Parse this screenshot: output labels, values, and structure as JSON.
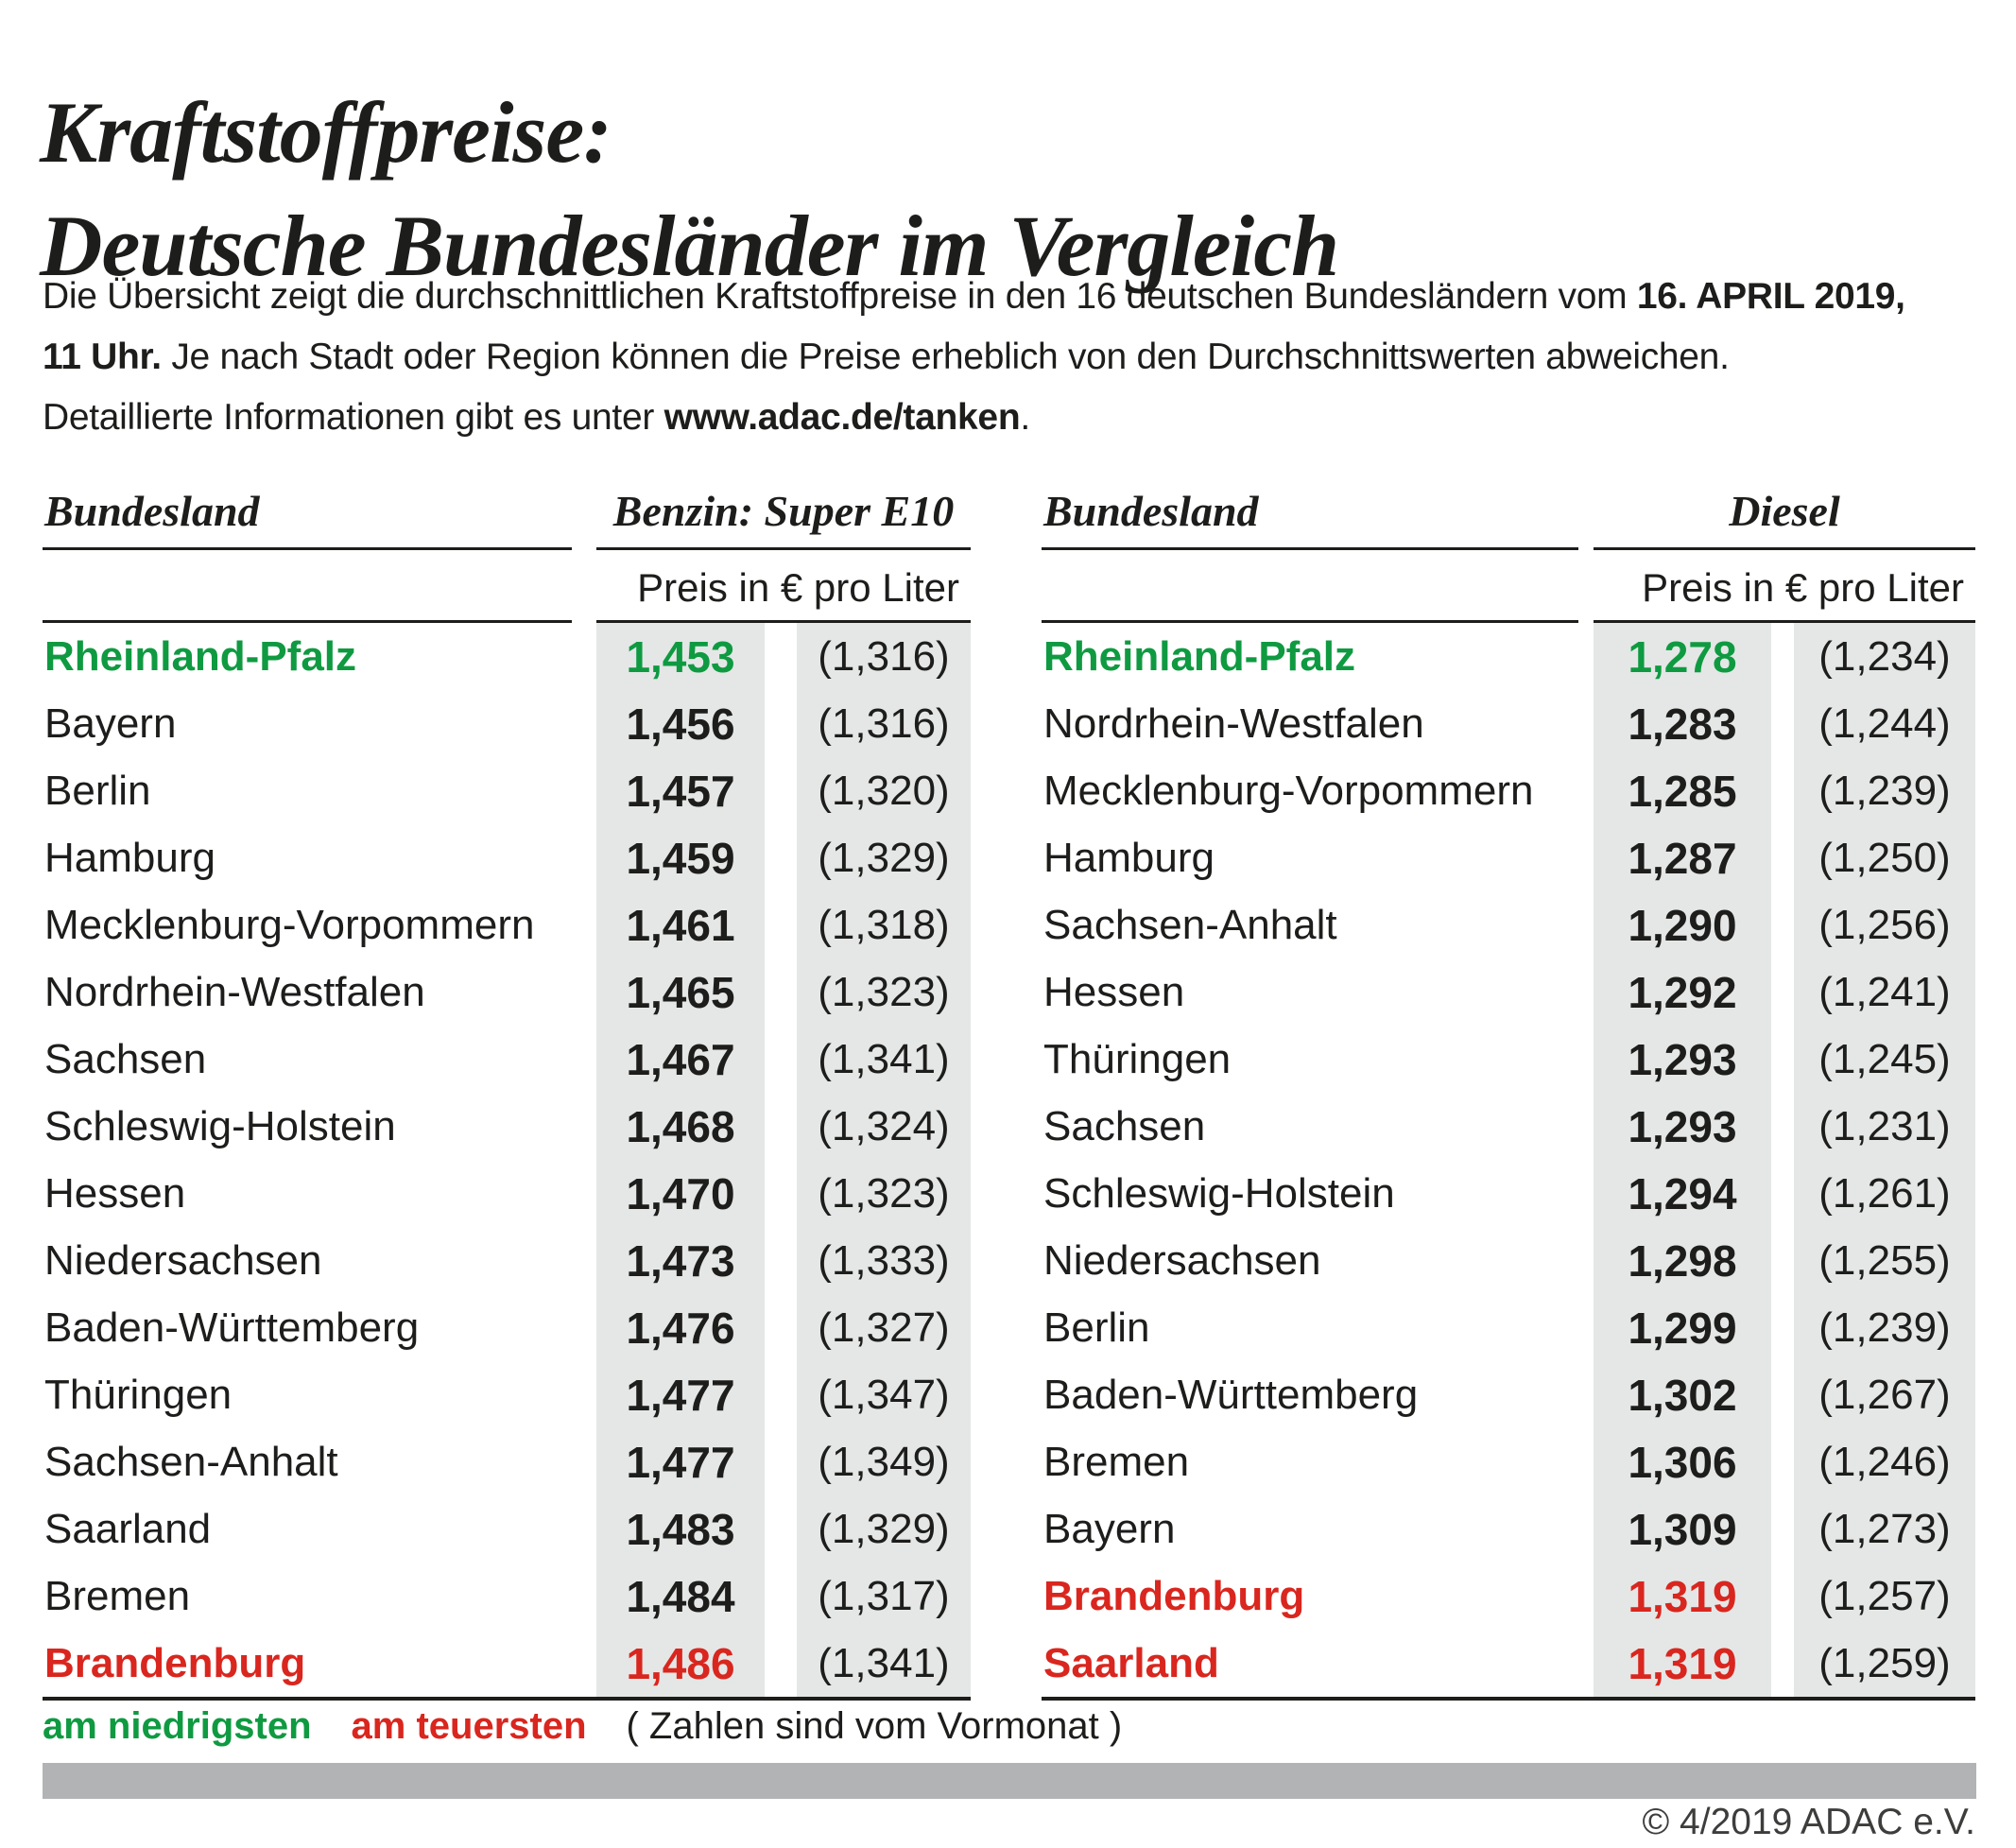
{
  "title": {
    "line1": "Kraftstoffpreise:",
    "line2": "Deutsche Bundesländer im Vergleich"
  },
  "intro": {
    "lines": [
      [
        {
          "t": "Die Übersicht zeigt die durchschnittlichen Kraftstoffpreise in den 16 deutschen Bundesländern vom ",
          "b": false
        },
        {
          "t": "16. APRIL 2019,",
          "b": true
        }
      ],
      [
        {
          "t": "11 Uhr.",
          "b": true
        },
        {
          "t": " Je nach Stadt oder Region können die Preise erheblich von den Durchschnittswerten abweichen.",
          "b": false
        }
      ],
      [
        {
          "t": "Detaillierte Informationen gibt es unter ",
          "b": false
        },
        {
          "t": "www.adac.de/tanken",
          "b": true
        },
        {
          "t": ".",
          "b": false
        }
      ]
    ]
  },
  "tables": [
    {
      "header": {
        "region_label": "Bundesland",
        "fuel_label": "Benzin: Super E10",
        "unit_label": "Preis in € pro Liter"
      },
      "rows": [
        {
          "name": "Rheinland-Pfalz",
          "value": "1,453",
          "prev": "(1,316)",
          "highlight": "lowest"
        },
        {
          "name": "Bayern",
          "value": "1,456",
          "prev": "(1,316)",
          "highlight": null
        },
        {
          "name": "Berlin",
          "value": "1,457",
          "prev": "(1,320)",
          "highlight": null
        },
        {
          "name": "Hamburg",
          "value": "1,459",
          "prev": "(1,329)",
          "highlight": null
        },
        {
          "name": "Mecklenburg-Vorpommern",
          "value": "1,461",
          "prev": "(1,318)",
          "highlight": null
        },
        {
          "name": "Nordrhein-Westfalen",
          "value": "1,465",
          "prev": "(1,323)",
          "highlight": null
        },
        {
          "name": "Sachsen",
          "value": "1,467",
          "prev": "(1,341)",
          "highlight": null
        },
        {
          "name": "Schleswig-Holstein",
          "value": "1,468",
          "prev": "(1,324)",
          "highlight": null
        },
        {
          "name": "Hessen",
          "value": "1,470",
          "prev": "(1,323)",
          "highlight": null
        },
        {
          "name": "Niedersachsen",
          "value": "1,473",
          "prev": "(1,333)",
          "highlight": null
        },
        {
          "name": "Baden-Württemberg",
          "value": "1,476",
          "prev": "(1,327)",
          "highlight": null
        },
        {
          "name": "Thüringen",
          "value": "1,477",
          "prev": "(1,347)",
          "highlight": null
        },
        {
          "name": "Sachsen-Anhalt",
          "value": "1,477",
          "prev": "(1,349)",
          "highlight": null
        },
        {
          "name": "Saarland",
          "value": "1,483",
          "prev": "(1,329)",
          "highlight": null
        },
        {
          "name": "Bremen",
          "value": "1,484",
          "prev": "(1,317)",
          "highlight": null
        },
        {
          "name": "Brandenburg",
          "value": "1,486",
          "prev": "(1,341)",
          "highlight": "highest"
        }
      ]
    },
    {
      "header": {
        "region_label": "Bundesland",
        "fuel_label": "Diesel",
        "unit_label": "Preis in € pro Liter"
      },
      "rows": [
        {
          "name": "Rheinland-Pfalz",
          "value": "1,278",
          "prev": "(1,234)",
          "highlight": "lowest"
        },
        {
          "name": "Nordrhein-Westfalen",
          "value": "1,283",
          "prev": "(1,244)",
          "highlight": null
        },
        {
          "name": "Mecklenburg-Vorpommern",
          "value": "1,285",
          "prev": "(1,239)",
          "highlight": null
        },
        {
          "name": "Hamburg",
          "value": "1,287",
          "prev": "(1,250)",
          "highlight": null
        },
        {
          "name": "Sachsen-Anhalt",
          "value": "1,290",
          "prev": "(1,256)",
          "highlight": null
        },
        {
          "name": "Hessen",
          "value": "1,292",
          "prev": "(1,241)",
          "highlight": null
        },
        {
          "name": "Thüringen",
          "value": "1,293",
          "prev": "(1,245)",
          "highlight": null
        },
        {
          "name": "Sachsen",
          "value": "1,293",
          "prev": "(1,231)",
          "highlight": null
        },
        {
          "name": "Schleswig-Holstein",
          "value": "1,294",
          "prev": "(1,261)",
          "highlight": null
        },
        {
          "name": "Niedersachsen",
          "value": "1,298",
          "prev": "(1,255)",
          "highlight": null
        },
        {
          "name": "Berlin",
          "value": "1,299",
          "prev": "(1,239)",
          "highlight": null
        },
        {
          "name": "Baden-Württemberg",
          "value": "1,302",
          "prev": "(1,267)",
          "highlight": null
        },
        {
          "name": "Bremen",
          "value": "1,306",
          "prev": "(1,246)",
          "highlight": null
        },
        {
          "name": "Bayern",
          "value": "1,309",
          "prev": "(1,273)",
          "highlight": null
        },
        {
          "name": "Brandenburg",
          "value": "1,319",
          "prev": "(1,257)",
          "highlight": "highest"
        },
        {
          "name": "Saarland",
          "value": "1,319",
          "prev": "(1,259)",
          "highlight": "highest"
        }
      ]
    }
  ],
  "legend": {
    "lowest": "am niedrigsten",
    "highest": "am teuersten",
    "note": "( Zahlen sind vom Vormonat )"
  },
  "footer": {
    "copyright": "© 4/2019 ADAC e.V."
  },
  "colors": {
    "green": "#0f9a41",
    "red": "#d9261e",
    "stripe": "#e4e7e6",
    "bar": "#b1b3b4"
  },
  "chart_data": [
    {
      "type": "table",
      "title": "Benzin: Super E10",
      "unit": "Preis in € pro Liter",
      "columns": [
        "Bundesland",
        "Preis",
        "Vormonat"
      ],
      "rows": [
        [
          "Rheinland-Pfalz",
          1.453,
          1.316
        ],
        [
          "Bayern",
          1.456,
          1.316
        ],
        [
          "Berlin",
          1.457,
          1.32
        ],
        [
          "Hamburg",
          1.459,
          1.329
        ],
        [
          "Mecklenburg-Vorpommern",
          1.461,
          1.318
        ],
        [
          "Nordrhein-Westfalen",
          1.465,
          1.323
        ],
        [
          "Sachsen",
          1.467,
          1.341
        ],
        [
          "Schleswig-Holstein",
          1.468,
          1.324
        ],
        [
          "Hessen",
          1.47,
          1.323
        ],
        [
          "Niedersachsen",
          1.473,
          1.333
        ],
        [
          "Baden-Württemberg",
          1.476,
          1.327
        ],
        [
          "Thüringen",
          1.477,
          1.347
        ],
        [
          "Sachsen-Anhalt",
          1.477,
          1.349
        ],
        [
          "Saarland",
          1.483,
          1.329
        ],
        [
          "Bremen",
          1.484,
          1.317
        ],
        [
          "Brandenburg",
          1.486,
          1.341
        ]
      ],
      "lowest": "Rheinland-Pfalz",
      "highest": "Brandenburg"
    },
    {
      "type": "table",
      "title": "Diesel",
      "unit": "Preis in € pro Liter",
      "columns": [
        "Bundesland",
        "Preis",
        "Vormonat"
      ],
      "rows": [
        [
          "Rheinland-Pfalz",
          1.278,
          1.234
        ],
        [
          "Nordrhein-Westfalen",
          1.283,
          1.244
        ],
        [
          "Mecklenburg-Vorpommern",
          1.285,
          1.239
        ],
        [
          "Hamburg",
          1.287,
          1.25
        ],
        [
          "Sachsen-Anhalt",
          1.29,
          1.256
        ],
        [
          "Hessen",
          1.292,
          1.241
        ],
        [
          "Thüringen",
          1.293,
          1.245
        ],
        [
          "Sachsen",
          1.293,
          1.231
        ],
        [
          "Schleswig-Holstein",
          1.294,
          1.261
        ],
        [
          "Niedersachsen",
          1.298,
          1.255
        ],
        [
          "Berlin",
          1.299,
          1.239
        ],
        [
          "Baden-Württemberg",
          1.302,
          1.267
        ],
        [
          "Bremen",
          1.306,
          1.246
        ],
        [
          "Bayern",
          1.309,
          1.273
        ],
        [
          "Brandenburg",
          1.319,
          1.257
        ],
        [
          "Saarland",
          1.319,
          1.259
        ]
      ],
      "lowest": "Rheinland-Pfalz",
      "highest": "Brandenburg / Saarland"
    }
  ]
}
